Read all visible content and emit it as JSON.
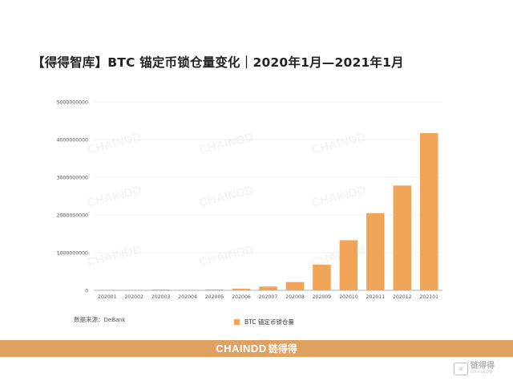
{
  "title": "【得得智库】BTC 锚定币锁仓量变化｜2020年1月—2021年1月",
  "source_note": "数据来源：DeBank",
  "watermark_text": "CHAINDD",
  "footer": {
    "brand": "CHAINDD",
    "brand_cn": "链得得"
  },
  "corner_logo": {
    "cn": "链得得",
    "en": "CHAINDD"
  },
  "colors": {
    "bar": "#f0a458",
    "footer": "#e0a05f",
    "grid": "#e6e6e6",
    "axis": "#999999"
  },
  "chart_data": {
    "type": "bar",
    "categories": [
      "202001",
      "202002",
      "202003",
      "202004",
      "202005",
      "202006",
      "202007",
      "202008",
      "202009",
      "202010",
      "202011",
      "202012",
      "202101"
    ],
    "series": [
      {
        "name": "BTC 锚定币锁仓量",
        "values": [
          6000000,
          7000000,
          20000000,
          8000000,
          22000000,
          45000000,
          100000000,
          220000000,
          680000000,
          1330000000,
          2050000000,
          2780000000,
          4170000000
        ]
      }
    ],
    "y_ticks": [
      "0",
      "1000000000",
      "2000000000",
      "3000000000",
      "4000000000",
      "5000000000"
    ],
    "ylim": [
      0,
      5000000000
    ],
    "grid": true,
    "legend_position": "bottom"
  }
}
